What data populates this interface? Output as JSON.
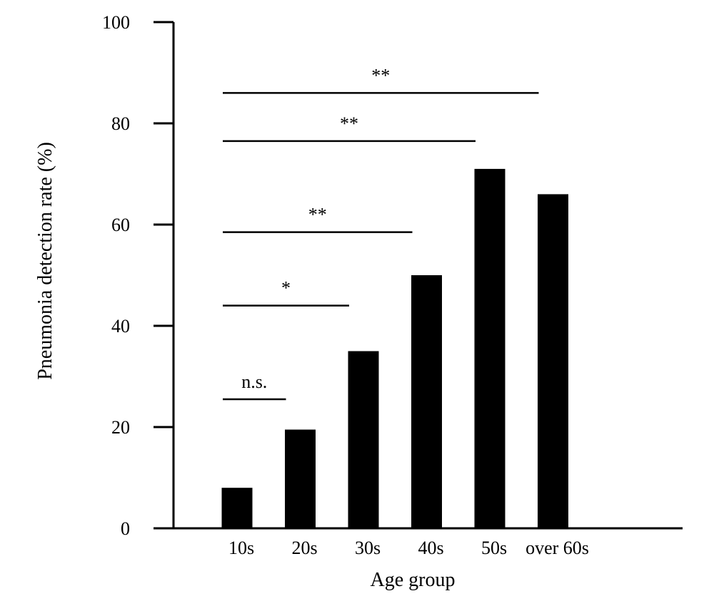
{
  "chart_data": {
    "type": "bar",
    "xlabel": "Age group",
    "ylabel": "Pneumonia detection rate (%)",
    "categories": [
      "10s",
      "20s",
      "30s",
      "40s",
      "50s",
      "over 60s"
    ],
    "values": [
      8,
      19.5,
      35,
      50,
      71,
      66
    ],
    "ylim": [
      0,
      100
    ],
    "yticks": [
      0,
      20,
      40,
      60,
      80,
      100
    ],
    "bar_color": "#000000",
    "grid": false,
    "legend": "none",
    "significance": [
      {
        "from": "10s",
        "to": "20s",
        "label": "n.s.",
        "y": 25.5
      },
      {
        "from": "10s",
        "to": "30s",
        "label": "*",
        "y": 44
      },
      {
        "from": "10s",
        "to": "40s",
        "label": "**",
        "y": 58.5
      },
      {
        "from": "10s",
        "to": "50s",
        "label": "**",
        "y": 76.5
      },
      {
        "from": "10s",
        "to": "over 60s",
        "label": "**",
        "y": 86
      }
    ]
  }
}
